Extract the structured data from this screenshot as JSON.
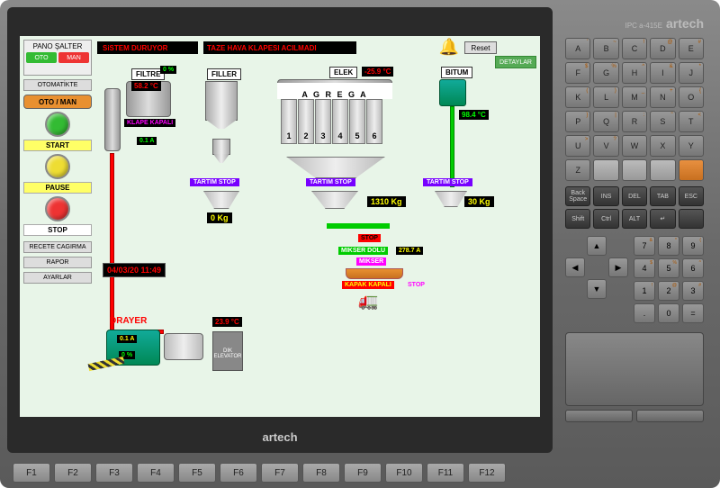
{
  "brand": "artech",
  "ipc_model": "IPC a-415E",
  "fkeys": [
    "F1",
    "F2",
    "F3",
    "F4",
    "F5",
    "F6",
    "F7",
    "F8",
    "F9",
    "F10",
    "F11",
    "F12"
  ],
  "alpha": [
    "A",
    "B",
    "C",
    "D",
    "E",
    "F",
    "G",
    "H",
    "I",
    "J",
    "K",
    "L",
    "M",
    "N",
    "O",
    "P",
    "Q",
    "R",
    "S",
    "T",
    "U",
    "V",
    "W",
    "X",
    "Y",
    "Z"
  ],
  "alpha_sup": [
    "'",
    "~",
    "!",
    "@",
    "#",
    "$",
    "%",
    "^",
    "&",
    "*",
    "(",
    ")",
    "_",
    "+",
    "{",
    "}",
    "|",
    ":",
    "\"",
    "<",
    ">",
    "?",
    "",
    "",
    "",
    ""
  ],
  "ctrl1": [
    "Back Space",
    "INS",
    "DEL",
    "TAB",
    "ESC"
  ],
  "ctrl2": [
    "Shift",
    "Ctrl",
    "ALT",
    "↵",
    ""
  ],
  "num": [
    "7",
    "8",
    "9",
    "4",
    "5",
    "6",
    "1",
    "2",
    "3",
    ".",
    "0",
    "="
  ],
  "num_sup": [
    "&",
    "*",
    "(",
    "$",
    "%",
    "^",
    "!",
    "@",
    "#",
    "",
    "",
    ""
  ],
  "pano": {
    "title": "PANO ŞALTER",
    "oto": "OTO",
    "man": "MAN"
  },
  "status_text": "SiSTEM DURUYOR",
  "status_color": "#f00",
  "alarm_text": "TAZE HAVA KLAPESI ACILMADI",
  "reset": "Reset",
  "detaylar": "DETAYLAR",
  "left": {
    "otomatikte": "OTOMATİKTE",
    "otoman": "OTO / MAN",
    "start": "START",
    "pause": "PAUSE",
    "stop": "STOP",
    "recete": "RECETE CAGIRMA",
    "rapor": "RAPOR",
    "ayarlar": "AYARLAR"
  },
  "filtre": {
    "label": "FILTRE",
    "temp": "58.2 °C",
    "klape": "KLAPE KAPALI",
    "pct": "0 %",
    "amp": "0.1 A"
  },
  "filler": {
    "label": "FILLER",
    "tartim": "TARTIM STOP",
    "kg": "0 Kg"
  },
  "elek": {
    "label": "ELEK",
    "temp": "-25.9 °C"
  },
  "agrega": {
    "label": "A G R E G A",
    "nums": [
      "1",
      "2",
      "3",
      "4",
      "5",
      "6"
    ],
    "tartim": "TARTIM STOP",
    "kg": "1310 Kg"
  },
  "bitum": {
    "label": "BITUM",
    "temp": "98.4 °C",
    "tartim": "TARTIM STOP",
    "kg": "30 Kg"
  },
  "mikser": {
    "stop": "STOP",
    "dolu": "MIKSER DOLU",
    "amp": "278.7 A",
    "label": "MIKSER",
    "kapak": "KAPAK KAPALI",
    "stop2": "STOP"
  },
  "drayer": {
    "label": "DRAYER",
    "amp": "0.1 A",
    "pct": "0 %",
    "temp": "23.9 °C"
  },
  "elevator": "DIK ELEVATOR",
  "datetime": "04/03/20  11:49",
  "colors": {
    "green": "#3b3",
    "yellow": "#ed3",
    "red": "#e33",
    "blue": "#39e",
    "bg": "#e8f5e8",
    "otoman_btn": "#e89030"
  }
}
